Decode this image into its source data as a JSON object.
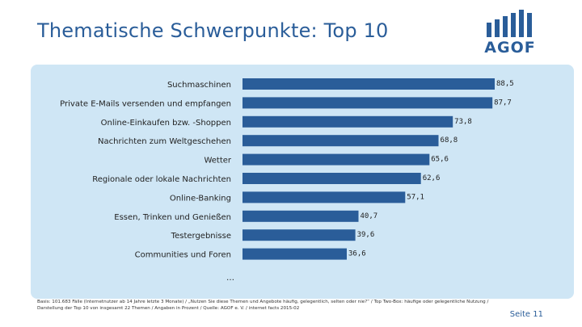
{
  "slide": {
    "title": "Thematische Schwerpunkte: Top 10",
    "logo_text": "AGOF",
    "page_number": "Seite 11",
    "footnote": "Basis: 101.683 Fälle (Internetnutzer ab 14 Jahre letzte 3 Monate) / „Nutzen Sie diese Themen und Angebote häufig, gelegentlich, selten oder nie?“ / Top Two-Box: häufige oder gelegentliche Nutzung / Darstellung der Top 10 von insgesamt 22 Themen / Angaben in Prozent / Quelle: AGOF e. V. / internet facts 2015-02",
    "ellipsis": "…"
  },
  "colors": {
    "accent": "#2a5d99",
    "bar": "#2a5d99",
    "panel": "#cfe6f5"
  },
  "chart_data": {
    "type": "bar",
    "orientation": "horizontal",
    "categories": [
      "Suchmaschinen",
      "Private E-Mails versenden und empfangen",
      "Online-Einkaufen bzw. -Shoppen",
      "Nachrichten zum Weltgeschehen",
      "Wetter",
      "Regionale oder lokale Nachrichten",
      "Online-Banking",
      "Essen, Trinken und Genießen",
      "Testergebnisse",
      "Communities und Foren"
    ],
    "values": [
      88.5,
      87.7,
      73.8,
      68.8,
      65.6,
      62.6,
      57.1,
      40.7,
      39.6,
      36.6
    ],
    "value_labels": [
      "88,5",
      "87,7",
      "73,8",
      "68,8",
      "65,6",
      "62,6",
      "57,1",
      "40,7",
      "39,6",
      "36,6"
    ],
    "xlim": [
      0,
      100
    ],
    "grid": false,
    "legend": "none"
  }
}
